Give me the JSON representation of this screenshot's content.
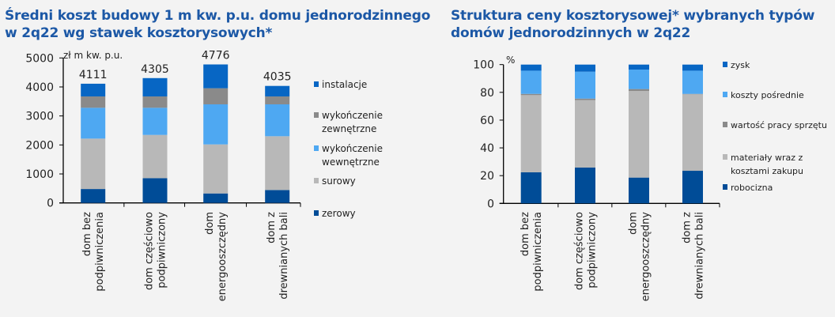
{
  "chart_data": [
    {
      "type": "bar",
      "stacked": true,
      "title": "Średni koszt budowy 1 m kw. p.u. domu jednorodzinnego w 2q22 wg stawek kosztorysowych*",
      "ylabel": "zł m kw. p.u.",
      "ylim": [
        0,
        5000
      ],
      "yticks": [
        0,
        1000,
        2000,
        3000,
        4000,
        5000
      ],
      "categories": [
        [
          "dom bez",
          "podpiwniczenia"
        ],
        [
          "dom częściowo",
          "podpiwniczony"
        ],
        [
          "dom",
          "energooszczędny"
        ],
        [
          "dom z",
          "drewnianych bali"
        ]
      ],
      "totals": [
        "4111",
        "4305",
        "4776",
        "4035"
      ],
      "legend_position": "right",
      "series": [
        {
          "name": "zerowy",
          "color": "#004c97",
          "values": [
            480,
            855,
            327,
            445
          ]
        },
        {
          "name": "surowy",
          "color": "#b8b8b8",
          "values": [
            1738,
            1490,
            1691,
            1855
          ]
        },
        {
          "name": "wykończenie wewnętrzne",
          "legend_lines": [
            "wykończenie",
            "wewnętrzne"
          ],
          "color": "#4ea8f2",
          "values": [
            1064,
            937,
            1382,
            1100
          ]
        },
        {
          "name": "wykończenie zewnętrzne",
          "legend_lines": [
            "wykończenie",
            "zewnętrzne"
          ],
          "color": "#8a8a8a",
          "values": [
            391,
            391,
            555,
            273
          ]
        },
        {
          "name": "instalacje",
          "color": "#0766c4",
          "values": [
            438,
            632,
            821,
            362
          ]
        }
      ]
    },
    {
      "type": "bar",
      "stacked": true,
      "title": "Struktura ceny kosztorysowej* wybranych typów domów jednorodzinnych w 2q22",
      "ylabel": "%",
      "ylim": [
        0,
        100
      ],
      "yticks": [
        0,
        20,
        40,
        60,
        80,
        100
      ],
      "categories": [
        [
          "dom bez",
          "podpiwniczenia"
        ],
        [
          "dom częściowo",
          "podpiwniczony"
        ],
        [
          "dom",
          "energooszczędny"
        ],
        [
          "dom z",
          "drewnianych bali"
        ]
      ],
      "legend_position": "right",
      "series": [
        {
          "name": "robocizna",
          "color": "#004c97",
          "values": [
            22.4,
            25.8,
            18.6,
            23.5
          ]
        },
        {
          "name": "materiały wraz z kosztami zakupu",
          "legend_lines": [
            "materiały wraz z",
            "kosztami zakupu"
          ],
          "color": "#b8b8b8",
          "values": [
            55.6,
            48.6,
            62.4,
            55.1
          ]
        },
        {
          "name": "wartość pracy sprzętu",
          "color": "#8a8a8a",
          "values": [
            0.9,
            1.1,
            1.4,
            0.3
          ]
        },
        {
          "name": "koszty pośrednie",
          "color": "#4ea8f2",
          "values": [
            16.7,
            19.4,
            14.0,
            16.7
          ]
        },
        {
          "name": "zysk",
          "color": "#0766c4",
          "values": [
            4.4,
            5.1,
            3.6,
            4.4
          ]
        }
      ]
    }
  ]
}
